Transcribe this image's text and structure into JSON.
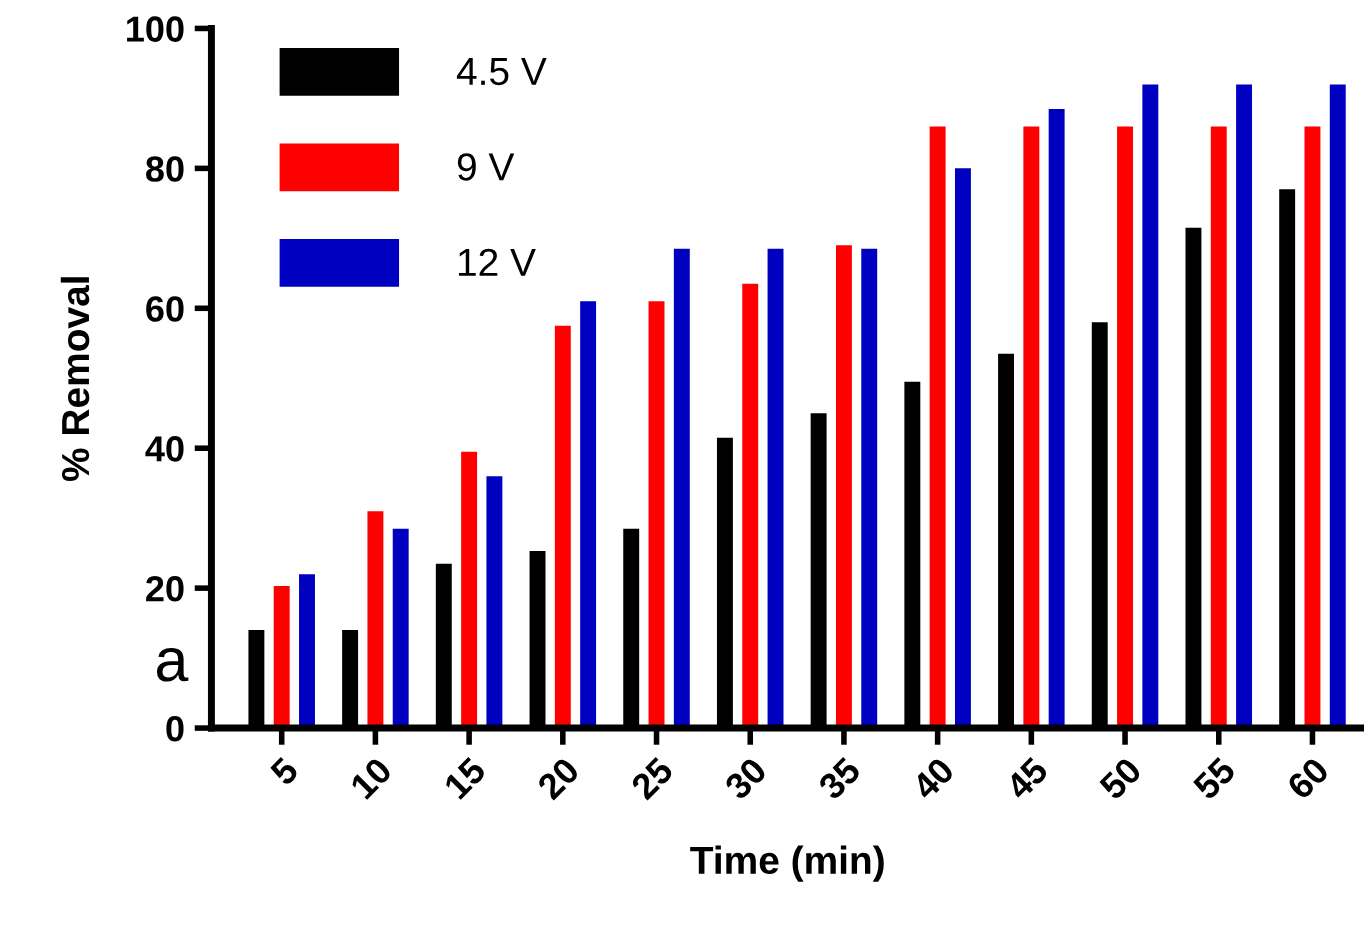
{
  "chart_data": {
    "type": "bar",
    "xlabel": "Time (min)",
    "ylabel": "% Removal",
    "categories": [
      "5",
      "10",
      "15",
      "20",
      "25",
      "30",
      "35",
      "40",
      "45",
      "50",
      "55",
      "60"
    ],
    "series": [
      {
        "name": "4.5 V",
        "color": "#000000",
        "values": [
          14,
          14,
          23.5,
          25.3,
          28.5,
          41.5,
          45,
          49.5,
          53.5,
          58,
          71.5,
          77
        ]
      },
      {
        "name": "9 V",
        "color": "#ff0000",
        "values": [
          20.3,
          31,
          39.5,
          57.5,
          61,
          63.5,
          69,
          86,
          86,
          86,
          86,
          86
        ]
      },
      {
        "name": "12 V",
        "color": "#0000c0",
        "values": [
          22,
          28.5,
          36,
          61,
          68.5,
          68.5,
          68.5,
          80,
          88.5,
          92,
          92,
          92
        ]
      }
    ],
    "ylim": [
      0,
      100
    ],
    "yticks": [
      0,
      20,
      40,
      60,
      80,
      100
    ],
    "grid": false,
    "legend": "top left",
    "annotations": [
      "a"
    ]
  }
}
